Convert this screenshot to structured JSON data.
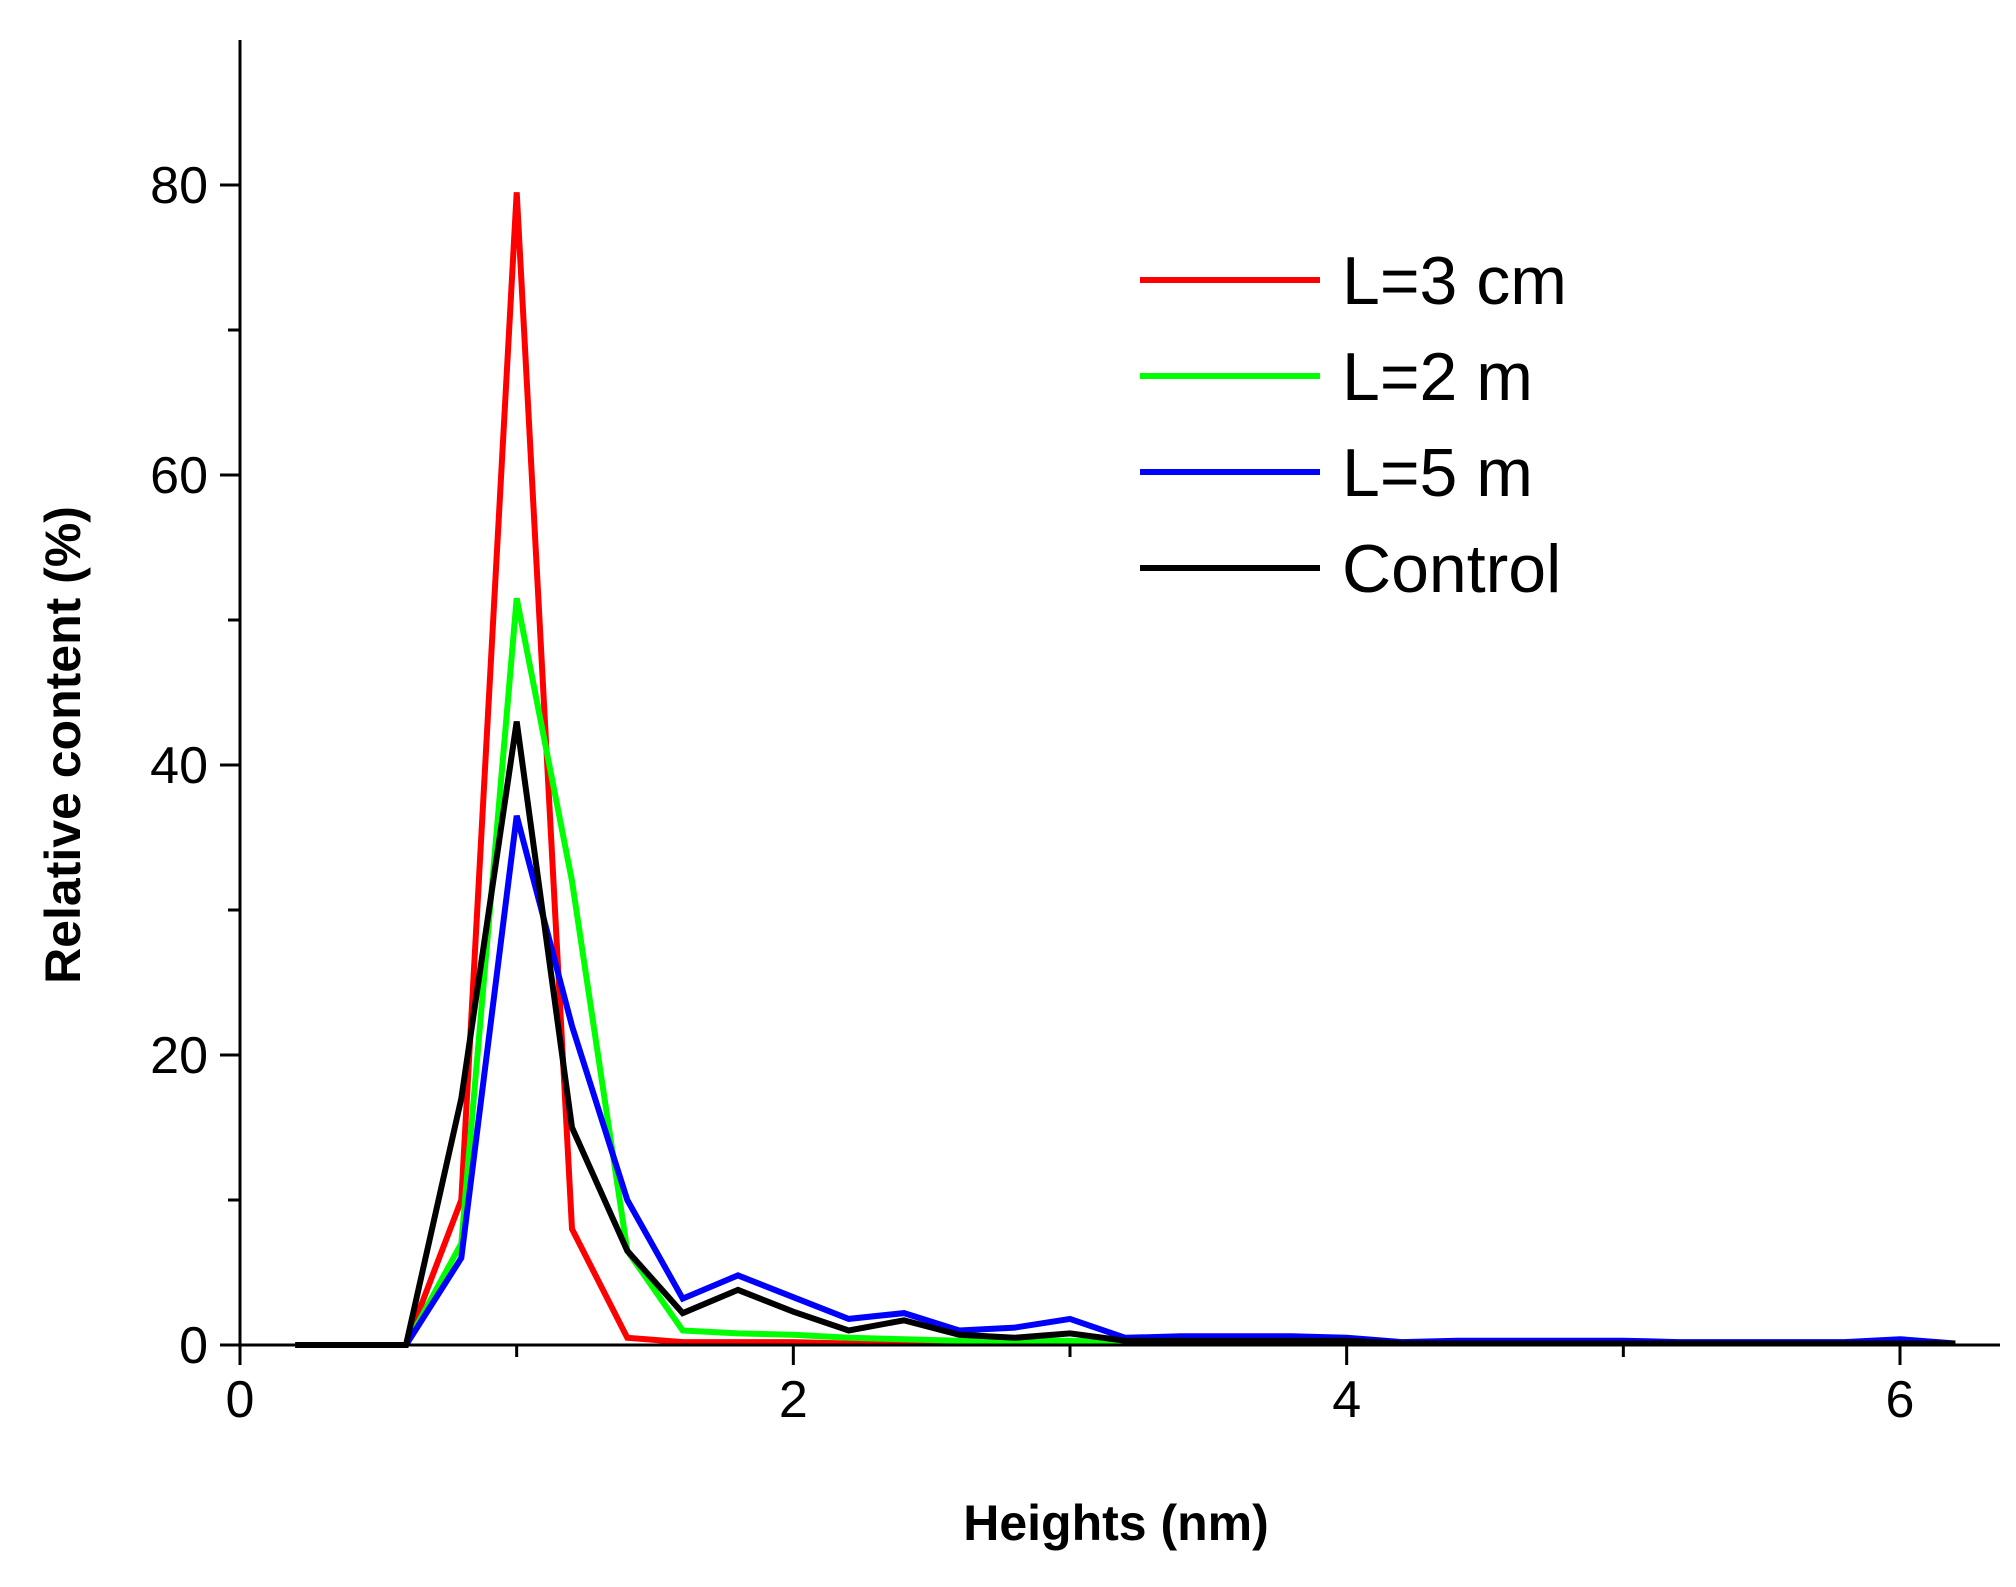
{
  "chart_data": {
    "type": "line",
    "title": "",
    "xlabel": "Heights (nm)",
    "ylabel": "Relative content (%)",
    "xlim": [
      0,
      6.2
    ],
    "ylim": [
      0,
      90
    ],
    "x_ticks": [
      0,
      2,
      4,
      6
    ],
    "y_ticks": [
      0,
      20,
      40,
      60,
      80
    ],
    "legend_position": "top-right",
    "series": [
      {
        "name": "L=3 cm",
        "color": "#ff0000",
        "x": [
          0.2,
          0.4,
          0.6,
          0.8,
          1.0,
          1.2,
          1.4,
          1.6,
          1.8,
          2.0,
          2.2,
          2.4,
          2.6,
          2.8,
          3.0,
          3.2,
          3.4,
          3.6,
          3.8,
          4.0,
          4.2,
          4.4,
          4.6,
          4.8,
          5.0,
          5.2,
          5.4,
          5.6,
          5.8,
          6.0,
          6.2
        ],
        "values": [
          0,
          0,
          0,
          10,
          79.5,
          8,
          0.5,
          0.2,
          0.2,
          0.2,
          0.1,
          0.1,
          0.1,
          0.1,
          0.1,
          0.1,
          0.1,
          0.1,
          0.1,
          0.1,
          0.1,
          0.1,
          0.1,
          0.1,
          0.1,
          0.1,
          0.1,
          0.1,
          0.1,
          0.1,
          0.1
        ]
      },
      {
        "name": "L=2 m",
        "color": "#00ff00",
        "x": [
          0.2,
          0.4,
          0.6,
          0.8,
          1.0,
          1.2,
          1.4,
          1.6,
          1.8,
          2.0,
          2.2,
          2.4,
          2.6,
          2.8,
          3.0,
          3.2,
          3.4,
          3.6,
          3.8,
          4.0,
          4.2,
          4.4,
          4.6,
          4.8,
          5.0,
          5.2,
          5.4,
          5.6,
          5.8,
          6.0,
          6.2
        ],
        "values": [
          0,
          0,
          0,
          7,
          51.5,
          32,
          6.5,
          1,
          0.8,
          0.7,
          0.5,
          0.4,
          0.3,
          0.3,
          0.3,
          0.2,
          0.2,
          0.2,
          0.2,
          0.2,
          0.1,
          0.1,
          0.1,
          0.1,
          0.1,
          0.1,
          0.1,
          0.1,
          0.1,
          0.1,
          0.1
        ]
      },
      {
        "name": "L=5 m",
        "color": "#0000ff",
        "x": [
          0.2,
          0.4,
          0.6,
          0.8,
          1.0,
          1.2,
          1.4,
          1.6,
          1.8,
          2.0,
          2.2,
          2.4,
          2.6,
          2.8,
          3.0,
          3.2,
          3.4,
          3.6,
          3.8,
          4.0,
          4.2,
          4.4,
          4.6,
          4.8,
          5.0,
          5.2,
          5.4,
          5.6,
          5.8,
          6.0,
          6.2
        ],
        "values": [
          0,
          0,
          0,
          6,
          36.5,
          22,
          10,
          3.2,
          4.8,
          3.3,
          1.8,
          2.2,
          1,
          1.2,
          1.8,
          0.5,
          0.6,
          0.6,
          0.6,
          0.5,
          0.2,
          0.3,
          0.3,
          0.3,
          0.3,
          0.2,
          0.2,
          0.2,
          0.2,
          0.4,
          0.1
        ]
      },
      {
        "name": "Control",
        "color": "#000000",
        "x": [
          0.2,
          0.4,
          0.6,
          0.8,
          1.0,
          1.2,
          1.4,
          1.6,
          1.8,
          2.0,
          2.2,
          2.4,
          2.6,
          2.8,
          3.0,
          3.2,
          3.4,
          3.6,
          3.8,
          4.0,
          4.2,
          4.4,
          4.6,
          4.8,
          5.0,
          5.2,
          5.4,
          5.6,
          5.8,
          6.0,
          6.2
        ],
        "values": [
          0,
          0,
          0,
          17,
          43,
          15,
          6.5,
          2.2,
          3.8,
          2.3,
          1,
          1.7,
          0.7,
          0.5,
          0.8,
          0.3,
          0.3,
          0.3,
          0.3,
          0.3,
          0.1,
          0.1,
          0.1,
          0.1,
          0.1,
          0.1,
          0.1,
          0.1,
          0.1,
          0.1,
          0.1
        ]
      }
    ]
  }
}
